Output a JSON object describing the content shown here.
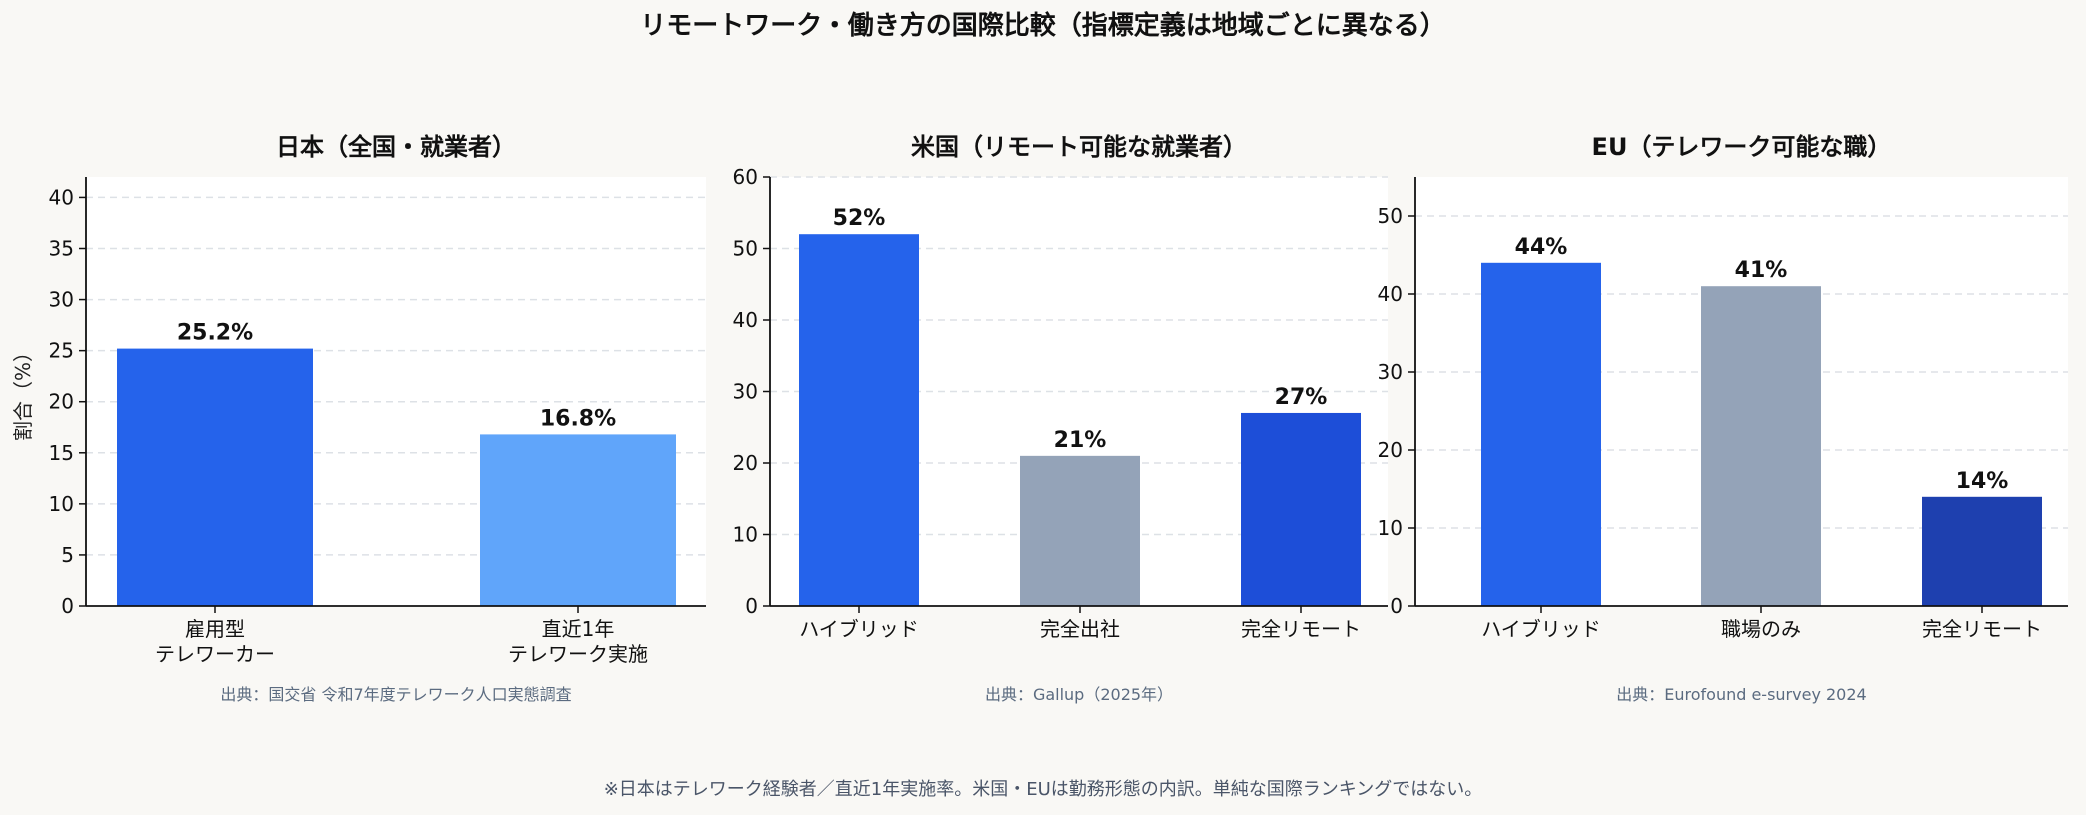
{
  "suptitle": "リモートワーク・働き方の国際比較（指標定義は地域ごとに異なる）",
  "footnote": "※日本はテレワーク経験者／直近1年実施率。米国・EUは勤務形態の内訳。単純な国際ランキングではない。",
  "colors": {
    "background": "#f9f8f5",
    "plot_bg": "#ffffff",
    "grid": "#dde1e6",
    "axis": "#111111",
    "source_text": "#5b6b80"
  },
  "chart_data": [
    {
      "type": "bar",
      "title": "日本（全国・就業者）",
      "ylabel": "割合（%）",
      "categories": [
        "雇用型\nテレワーカー",
        "直近1年\nテレワーク実施"
      ],
      "values": [
        25.2,
        16.8
      ],
      "value_labels": [
        "25.2%",
        "16.8%"
      ],
      "colors": [
        "#2563eb",
        "#60a5fa"
      ],
      "ylim": [
        0,
        42
      ],
      "yticks": [
        0,
        5,
        10,
        15,
        20,
        25,
        30,
        35,
        40
      ],
      "grid": true,
      "source": "出典：国交省 令和7年度テレワーク人口実態調査"
    },
    {
      "type": "bar",
      "title": "米国（リモート可能な就業者）",
      "ylabel": "",
      "categories": [
        "ハイブリッド",
        "完全出社",
        "完全リモート"
      ],
      "values": [
        52,
        21,
        27
      ],
      "value_labels": [
        "52%",
        "21%",
        "27%"
      ],
      "colors": [
        "#2563eb",
        "#94a3b8",
        "#1d4ed8"
      ],
      "ylim": [
        0,
        60
      ],
      "yticks": [
        0,
        10,
        20,
        30,
        40,
        50,
        60
      ],
      "grid": true,
      "source": "出典：Gallup（2025年）"
    },
    {
      "type": "bar",
      "title": "EU（テレワーク可能な職）",
      "ylabel": "",
      "categories": [
        "ハイブリッド",
        "職場のみ",
        "完全リモート"
      ],
      "values": [
        44,
        41,
        14
      ],
      "value_labels": [
        "44%",
        "41%",
        "14%"
      ],
      "colors": [
        "#2563eb",
        "#94a3b8",
        "#1e40af"
      ],
      "ylim": [
        0,
        55
      ],
      "yticks": [
        0,
        10,
        20,
        30,
        40,
        50
      ],
      "grid": true,
      "source": "出典：Eurofound e-survey 2024"
    }
  ]
}
